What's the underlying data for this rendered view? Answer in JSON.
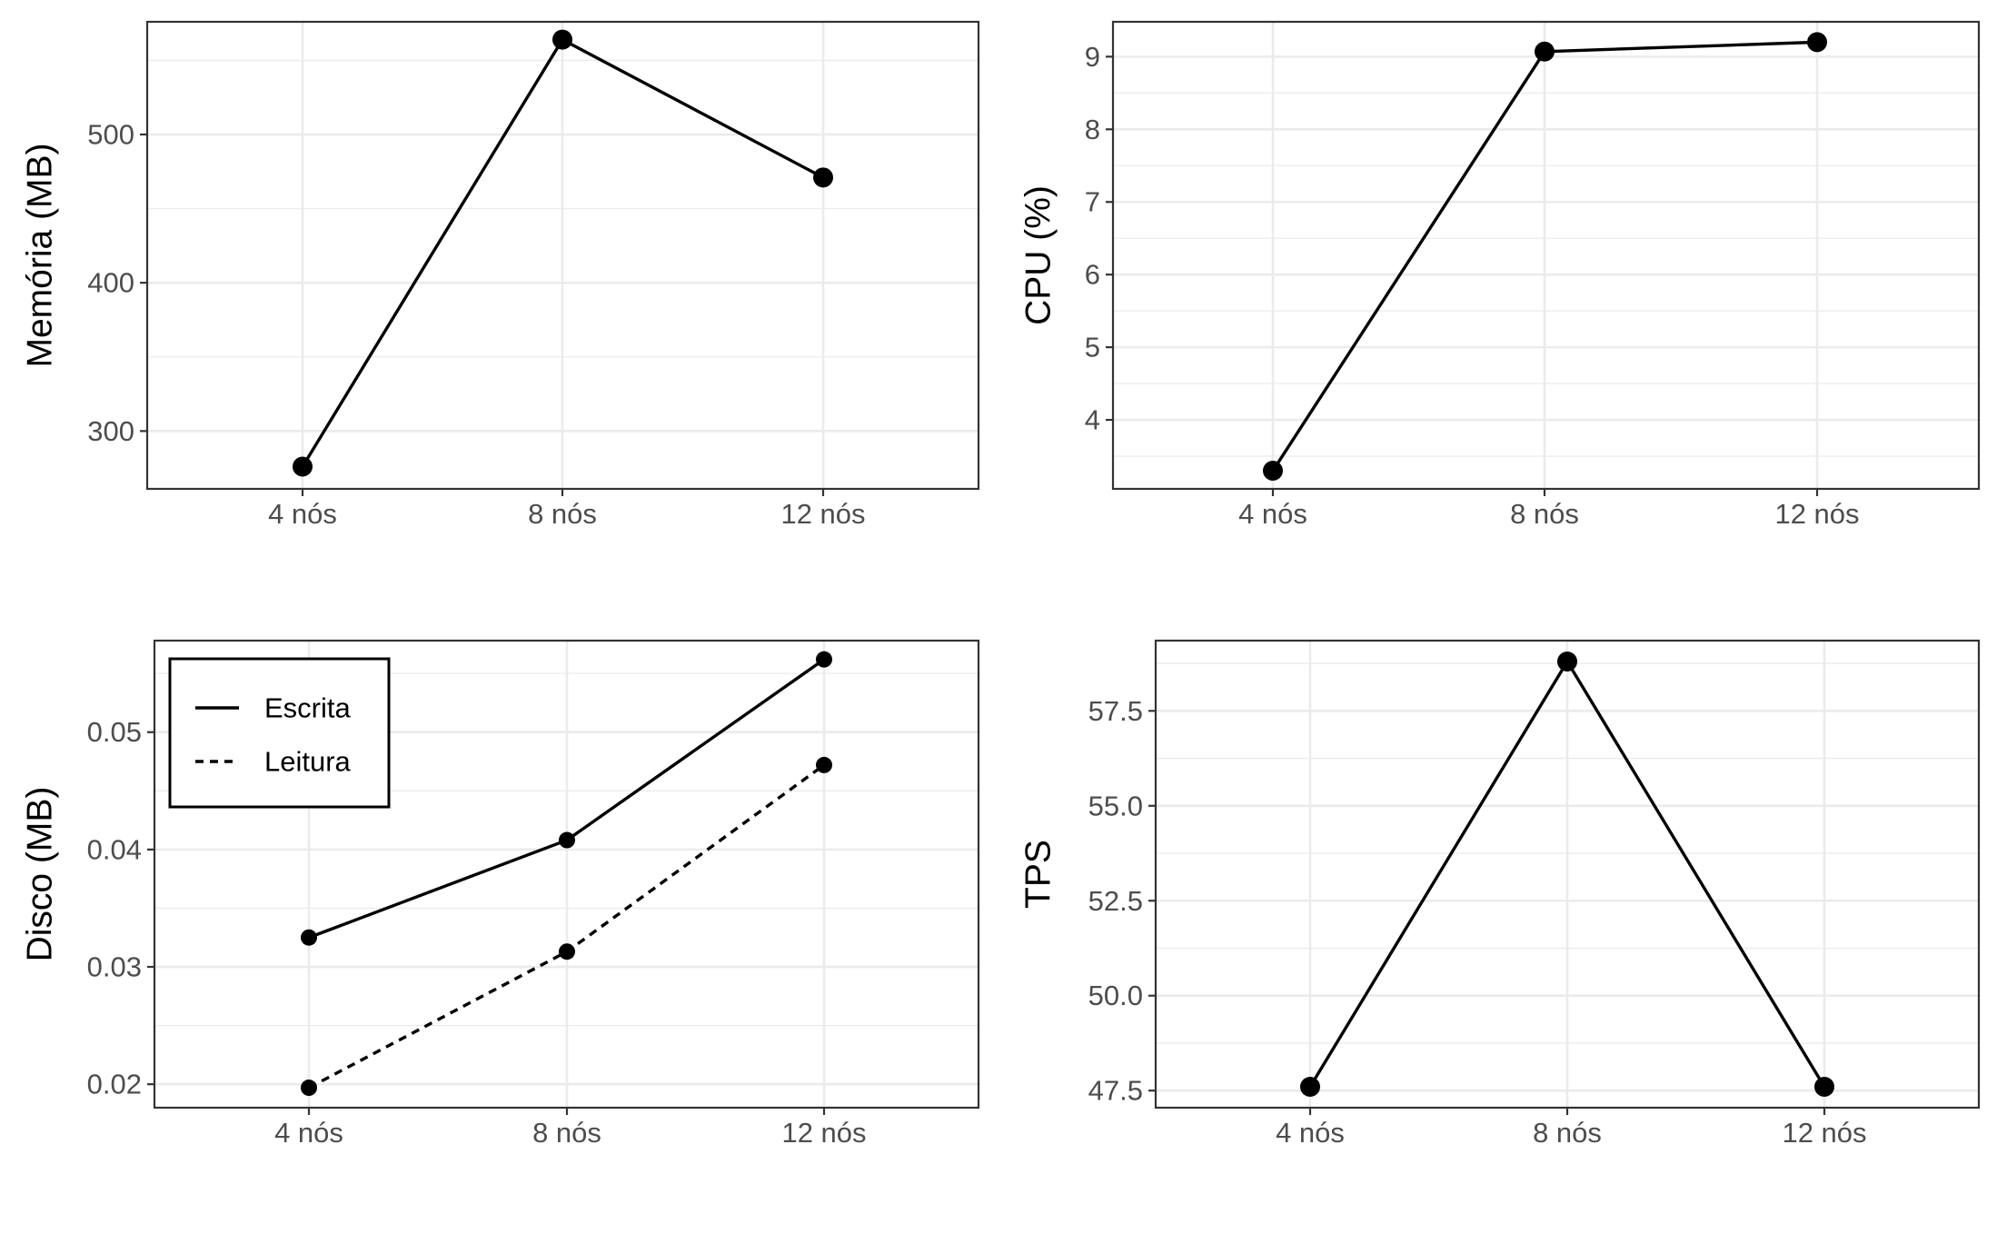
{
  "chart_data": [
    {
      "type": "line",
      "categories": [
        "4 nós",
        "8 nós",
        "12 nós"
      ],
      "ylabel": "Memória (MB)",
      "yticks": [
        300,
        400,
        500
      ],
      "ylim": [
        261,
        576
      ],
      "grid": true,
      "series": [
        {
          "values": [
            276,
            564,
            471
          ],
          "style": "solid",
          "color": "#000000"
        }
      ]
    },
    {
      "type": "line",
      "categories": [
        "4 nós",
        "8 nós",
        "12 nós"
      ],
      "ylabel": "CPU (%)",
      "yticks": [
        4,
        5,
        6,
        7,
        8,
        9
      ],
      "ylim": [
        3.05,
        9.48
      ],
      "grid": true,
      "series": [
        {
          "values": [
            3.3,
            9.07,
            9.2
          ],
          "style": "solid",
          "color": "#000000"
        }
      ]
    },
    {
      "type": "line",
      "categories": [
        "4 nós",
        "8 nós",
        "12 nós"
      ],
      "ylabel": "Disco (MB)",
      "yticks": [
        0.02,
        0.03,
        0.04,
        0.05
      ],
      "ylim": [
        0.018,
        0.0578
      ],
      "grid": true,
      "legend": "top-left",
      "series": [
        {
          "name": "Escrita",
          "values": [
            0.0325,
            0.0408,
            0.0562
          ],
          "style": "solid",
          "color": "#000000"
        },
        {
          "name": "Leitura",
          "values": [
            0.0197,
            0.0313,
            0.0472
          ],
          "style": "dashed",
          "color": "#000000"
        }
      ]
    },
    {
      "type": "line",
      "categories": [
        "4 nós",
        "8 nós",
        "12 nós"
      ],
      "ylabel": "TPS",
      "yticks": [
        47.5,
        50.0,
        52.5,
        55.0,
        57.5
      ],
      "ylabel_format": 1,
      "ylim": [
        47.05,
        59.35
      ],
      "grid": true,
      "series": [
        {
          "values": [
            47.6,
            58.8,
            47.6
          ],
          "style": "solid",
          "color": "#000000"
        }
      ]
    }
  ]
}
